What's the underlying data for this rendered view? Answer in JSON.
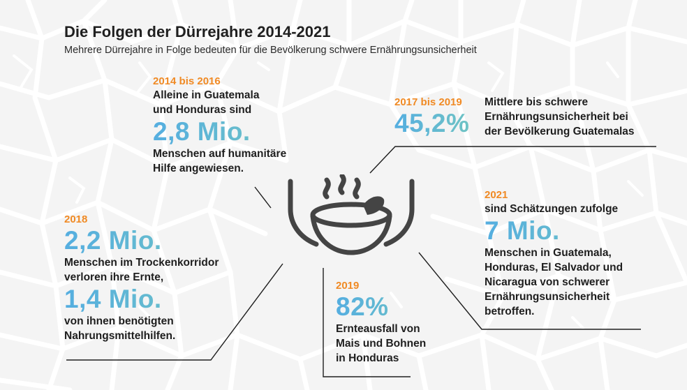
{
  "header": {
    "title": "Die Folgen der Dürrejahre 2014-2021",
    "subtitle": "Mehrere Dürrejahre in Folge bedeuten für die Bevölkerung schwere Ernährungsunsicherheit"
  },
  "colors": {
    "year": "#f08a24",
    "figure_start": "#55aee0",
    "figure_end": "#6fc3c4",
    "text": "#1e1e1e",
    "icon": "#444444"
  },
  "icon": "bowl-with-hands-icon",
  "facts": {
    "f2014": {
      "year": "2014 bis 2016",
      "intro1": "Alleine in Guatemala",
      "intro2": "und Honduras sind",
      "figure": "2,8 Mio.",
      "desc1": "Menschen auf humanitäre",
      "desc2": "Hilfe angewiesen."
    },
    "f2017": {
      "year": "2017 bis 2019",
      "figure": "45,2%",
      "desc1": "Mittlere bis schwere",
      "desc2": "Ernährungsunsicherheit bei",
      "desc3": "der Bevölkerung Guatemalas"
    },
    "f2018": {
      "year": "2018",
      "figure1": "2,2 Mio.",
      "desc1": "Menschen im Trockenkorridor",
      "desc2": "verloren ihre Ernte,",
      "figure2": "1,4 Mio.",
      "desc3": "von ihnen benötigten",
      "desc4": "Nahrungsmittelhilfen."
    },
    "f2019": {
      "year": "2019",
      "figure": "82%",
      "desc1": "Ernteausfall von",
      "desc2": "Mais und Bohnen",
      "desc3": "in Honduras"
    },
    "f2021": {
      "year": "2021",
      "intro": "sind Schätzungen zufolge",
      "figure": "7 Mio.",
      "desc1": "Menschen in Guatemala,",
      "desc2": "Honduras, El Salvador und",
      "desc3": "Nicaragua von schwerer",
      "desc4": "Ernährungsunsicherheit",
      "desc5": "betroffen."
    }
  }
}
